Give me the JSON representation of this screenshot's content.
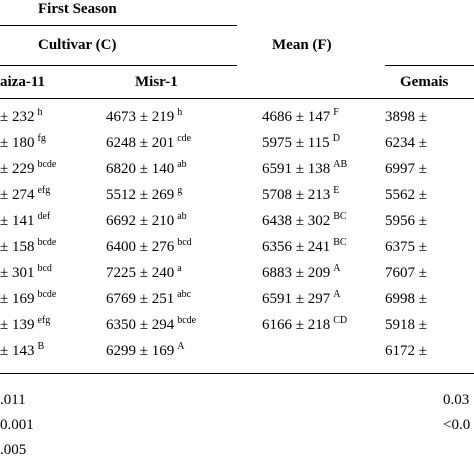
{
  "header": {
    "season": "First Season",
    "cultivar": "Cultivar (C)",
    "mean": "Mean (F)",
    "columns": [
      "aiza-11",
      "Misr-1",
      "Gemais"
    ]
  },
  "table": {
    "rows": [
      {
        "c1": {
          "text": "± 232",
          "sup": "h"
        },
        "c2": {
          "text": "4673 ± 219",
          "sup": "h"
        },
        "mean": {
          "text": "4686 ± 147",
          "sup": "F"
        },
        "c3": {
          "text": "3898 ±"
        }
      },
      {
        "c1": {
          "text": "± 180",
          "sup": "fg"
        },
        "c2": {
          "text": "6248 ± 201",
          "sup": "cde"
        },
        "mean": {
          "text": "5975 ± 115",
          "sup": "D"
        },
        "c3": {
          "text": "6234 ±"
        }
      },
      {
        "c1": {
          "text": "± 229",
          "sup": "bcde"
        },
        "c2": {
          "text": "6820 ± 140",
          "sup": "ab"
        },
        "mean": {
          "text": "6591 ± 138",
          "sup": "AB"
        },
        "c3": {
          "text": "6997 ±"
        }
      },
      {
        "c1": {
          "text": "± 274",
          "sup": "efg"
        },
        "c2": {
          "text": "5512 ± 269",
          "sup": "g"
        },
        "mean": {
          "text": "5708 ± 213",
          "sup": "E"
        },
        "c3": {
          "text": "5562 ±"
        }
      },
      {
        "c1": {
          "text": "± 141",
          "sup": "def"
        },
        "c2": {
          "text": "6692 ± 210",
          "sup": "ab"
        },
        "mean": {
          "text": "6438 ± 302",
          "sup": "BC"
        },
        "c3": {
          "text": "5956 ±"
        }
      },
      {
        "c1": {
          "text": "± 158",
          "sup": "bcde"
        },
        "c2": {
          "text": "6400 ± 276",
          "sup": "bcd"
        },
        "mean": {
          "text": "6356 ± 241",
          "sup": "BC"
        },
        "c3": {
          "text": "6375 ±"
        }
      },
      {
        "c1": {
          "text": "± 301",
          "sup": "bcd"
        },
        "c2": {
          "text": "7225 ± 240",
          "sup": "a"
        },
        "mean": {
          "text": "6883 ± 209",
          "sup": "A"
        },
        "c3": {
          "text": "7607 ±"
        }
      },
      {
        "c1": {
          "text": "± 169",
          "sup": "bcde"
        },
        "c2": {
          "text": "6769 ± 251",
          "sup": "abc"
        },
        "mean": {
          "text": "6591 ± 297",
          "sup": "A"
        },
        "c3": {
          "text": "6998 ±"
        }
      },
      {
        "c1": {
          "text": "± 139",
          "sup": "efg"
        },
        "c2": {
          "text": "6350 ± 294",
          "sup": "bcde"
        },
        "mean": {
          "text": "6166 ± 218",
          "sup": "CD"
        },
        "c3": {
          "text": "5918 ±"
        }
      },
      {
        "c1": {
          "text": "± 143",
          "sup": "B"
        },
        "c2": {
          "text": "6299 ± 169",
          "sup": "A"
        },
        "c3": {
          "text": "6172 ±"
        }
      }
    ]
  },
  "stats": {
    "left": [
      ".011",
      "0.001",
      ".005"
    ],
    "right": [
      "0.03",
      "<0.0"
    ]
  }
}
